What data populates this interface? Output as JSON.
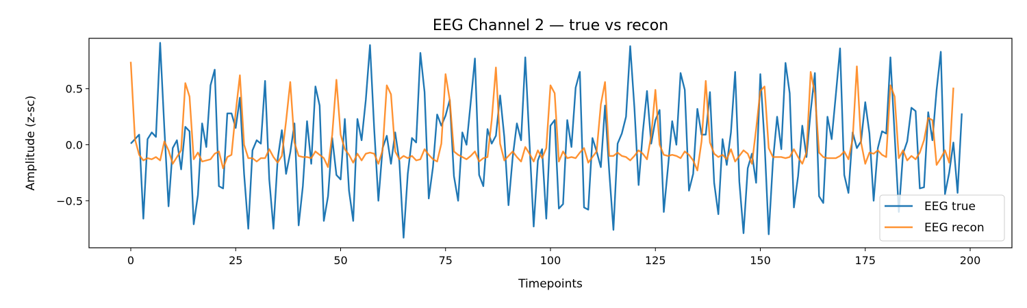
{
  "chart_data": {
    "type": "line",
    "title": "EEG Channel 2 — true vs recon",
    "xlabel": "Timepoints",
    "ylabel": "Amplitude (z-sc)",
    "xlim": [
      -9.95,
      209.95
    ],
    "ylim": [
      -0.92,
      0.95
    ],
    "xticks": [
      0,
      25,
      50,
      75,
      100,
      125,
      150,
      175,
      200
    ],
    "yticks": [
      -0.5,
      0.0,
      0.5
    ],
    "ytick_labels": [
      "−0.5",
      "0.0",
      "0.5"
    ],
    "grid": false,
    "legend_position": "lower right",
    "series": [
      {
        "name": "EEG true",
        "color": "#1f77b4",
        "values": [
          0.01,
          0.05,
          0.09,
          -0.66,
          0.05,
          0.11,
          0.07,
          0.91,
          0.15,
          -0.55,
          -0.03,
          0.04,
          -0.22,
          0.16,
          0.12,
          -0.71,
          -0.45,
          0.19,
          -0.02,
          0.53,
          0.67,
          -0.37,
          -0.39,
          0.28,
          0.28,
          0.15,
          0.42,
          -0.26,
          -0.75,
          -0.05,
          0.04,
          0.01,
          0.57,
          -0.31,
          -0.75,
          -0.13,
          0.13,
          -0.26,
          -0.07,
          0.19,
          -0.72,
          -0.37,
          0.21,
          -0.17,
          0.52,
          0.35,
          -0.68,
          -0.46,
          0.06,
          -0.27,
          -0.31,
          0.23,
          -0.41,
          -0.68,
          0.23,
          0.04,
          0.4,
          0.89,
          0.14,
          -0.5,
          -0.03,
          0.08,
          -0.17,
          0.11,
          -0.15,
          -0.83,
          -0.26,
          0.06,
          0.02,
          0.82,
          0.47,
          -0.48,
          -0.2,
          0.27,
          0.17,
          0.26,
          0.4,
          -0.28,
          -0.5,
          0.11,
          0.0,
          0.38,
          0.77,
          -0.27,
          -0.37,
          0.14,
          0.01,
          0.08,
          0.44,
          0.07,
          -0.54,
          -0.11,
          0.19,
          0.04,
          0.78,
          0.02,
          -0.73,
          -0.14,
          -0.04,
          -0.66,
          0.17,
          0.22,
          -0.57,
          -0.53,
          0.22,
          -0.02,
          0.51,
          0.65,
          -0.56,
          -0.58,
          0.06,
          -0.06,
          -0.2,
          0.35,
          -0.24,
          -0.76,
          0.01,
          0.1,
          0.25,
          0.88,
          0.33,
          -0.36,
          0.11,
          0.48,
          0.01,
          0.22,
          0.31,
          -0.6,
          -0.2,
          0.21,
          0.0,
          0.64,
          0.49,
          -0.41,
          -0.26,
          0.32,
          0.09,
          0.09,
          0.47,
          -0.34,
          -0.62,
          0.05,
          -0.18,
          0.11,
          0.65,
          -0.33,
          -0.79,
          -0.21,
          -0.08,
          -0.34,
          0.63,
          0.03,
          -0.8,
          -0.15,
          0.25,
          -0.04,
          0.73,
          0.46,
          -0.56,
          -0.28,
          0.17,
          -0.11,
          0.3,
          0.64,
          -0.46,
          -0.52,
          0.25,
          0.05,
          0.45,
          0.86,
          -0.27,
          -0.43,
          0.11,
          -0.03,
          0.03,
          0.38,
          0.1,
          -0.5,
          -0.03,
          0.12,
          0.1,
          0.78,
          0.09,
          -0.6,
          -0.08,
          0.03,
          0.33,
          0.3,
          -0.39,
          -0.38,
          0.29,
          0.04,
          0.49,
          0.83,
          -0.44,
          -0.25,
          0.02,
          -0.43,
          0.28
        ]
      },
      {
        "name": "EEG recon",
        "color": "#ff7f0e",
        "values": [
          0.74,
          0.05,
          -0.09,
          -0.14,
          -0.12,
          -0.13,
          -0.11,
          -0.14,
          0.03,
          -0.05,
          -0.17,
          -0.11,
          -0.05,
          0.55,
          0.43,
          -0.13,
          -0.07,
          -0.15,
          -0.14,
          -0.13,
          -0.08,
          -0.06,
          -0.21,
          -0.11,
          -0.09,
          0.29,
          0.62,
          0.0,
          -0.12,
          -0.12,
          -0.15,
          -0.12,
          -0.12,
          -0.04,
          -0.11,
          -0.16,
          -0.1,
          0.21,
          0.56,
          0.02,
          -0.1,
          -0.11,
          -0.11,
          -0.12,
          -0.06,
          -0.09,
          -0.12,
          -0.2,
          0.09,
          0.58,
          0.09,
          -0.04,
          -0.09,
          -0.16,
          -0.08,
          -0.14,
          -0.08,
          -0.07,
          -0.08,
          -0.17,
          -0.05,
          0.53,
          0.45,
          -0.06,
          -0.13,
          -0.1,
          -0.12,
          -0.1,
          -0.14,
          -0.13,
          -0.04,
          -0.09,
          -0.13,
          -0.15,
          0.01,
          0.63,
          0.4,
          -0.06,
          -0.09,
          -0.11,
          -0.13,
          -0.1,
          -0.06,
          -0.15,
          -0.12,
          -0.11,
          0.22,
          0.69,
          0.01,
          -0.14,
          -0.1,
          -0.06,
          -0.11,
          -0.15,
          -0.02,
          -0.08,
          -0.15,
          -0.05,
          -0.12,
          -0.03,
          0.53,
          0.46,
          -0.15,
          -0.06,
          -0.12,
          -0.11,
          -0.12,
          -0.07,
          -0.03,
          -0.16,
          -0.11,
          -0.06,
          0.36,
          0.56,
          -0.1,
          -0.1,
          -0.07,
          -0.1,
          -0.11,
          -0.14,
          -0.1,
          -0.05,
          -0.08,
          -0.13,
          0.08,
          0.49,
          0.0,
          -0.09,
          -0.1,
          -0.09,
          -0.1,
          -0.12,
          -0.06,
          -0.09,
          -0.14,
          -0.23,
          0.03,
          0.57,
          0.02,
          -0.08,
          -0.11,
          -0.09,
          -0.13,
          -0.04,
          -0.15,
          -0.1,
          -0.05,
          -0.08,
          -0.17,
          0.14,
          0.48,
          0.52,
          -0.03,
          -0.11,
          -0.11,
          -0.11,
          -0.12,
          -0.11,
          -0.04,
          -0.11,
          -0.17,
          -0.07,
          0.65,
          0.46,
          -0.07,
          -0.11,
          -0.12,
          -0.12,
          -0.12,
          -0.1,
          -0.06,
          -0.13,
          0.05,
          0.7,
          0.02,
          -0.17,
          -0.07,
          -0.08,
          -0.05,
          -0.09,
          -0.11,
          0.53,
          0.43,
          -0.12,
          -0.05,
          -0.14,
          -0.1,
          -0.13,
          -0.07,
          0.04,
          0.24,
          0.22,
          -0.18,
          -0.12,
          -0.05,
          -0.16,
          0.51
        ]
      }
    ]
  }
}
